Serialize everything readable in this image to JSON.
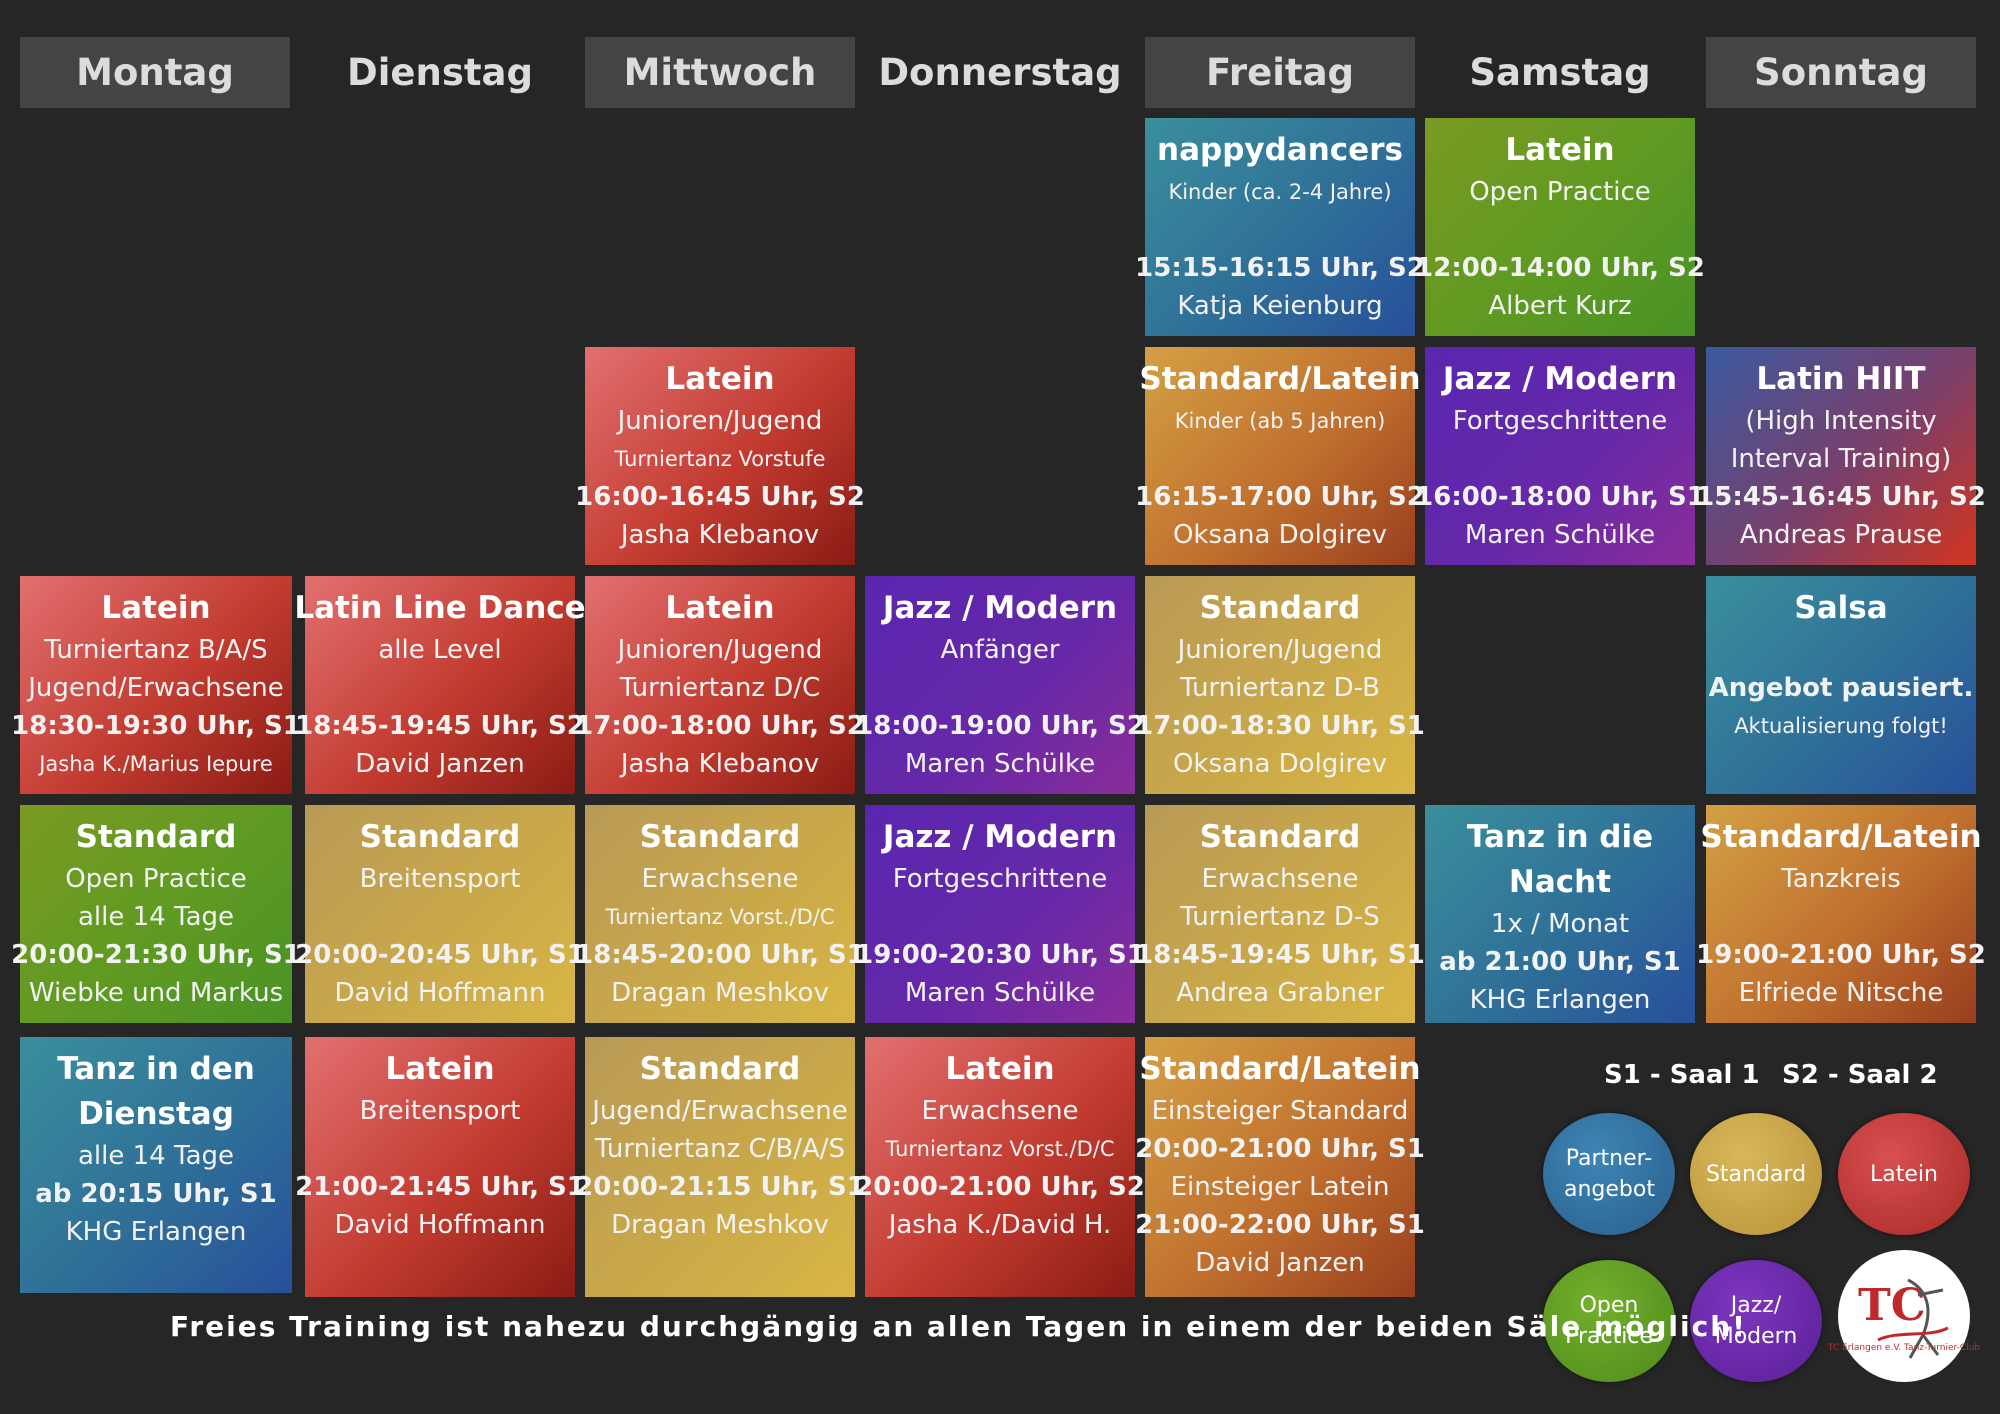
{
  "colors": {
    "background": "#262626",
    "header_shade": "#444444",
    "latein": "#c0392b",
    "standard": "#c9a646",
    "partner": "#2e6fa0",
    "open_practice": "#5e9a22",
    "jazz": "#6a2aa8",
    "standard_latein": "#c0702e"
  },
  "days": [
    "Montag",
    "Dienstag",
    "Mittwoch",
    "Donnerstag",
    "Freitag",
    "Samstag",
    "Sonntag"
  ],
  "cards": [
    {
      "day": "Freitag",
      "category": "partner",
      "lines": [
        "nappydancers",
        "Kinder (ca. 2-4 Jahre)",
        "",
        "15:15-16:15 Uhr, S2",
        "Katja Keienburg"
      ]
    },
    {
      "day": "Samstag",
      "category": "open_practice",
      "lines": [
        "Latein",
        "Open Practice",
        "",
        "12:00-14:00 Uhr, S2",
        "Albert Kurz"
      ]
    },
    {
      "day": "Mittwoch",
      "category": "latein",
      "lines": [
        "Latein",
        "Junioren/Jugend",
        "Turniertanz Vorstufe",
        "16:00-16:45 Uhr, S2",
        "Jasha Klebanov"
      ]
    },
    {
      "day": "Freitag",
      "category": "standard_latein",
      "lines": [
        "Standard/Latein",
        "Kinder (ab 5 Jahren)",
        "",
        "16:15-17:00 Uhr, S2",
        "Oksana Dolgirev"
      ]
    },
    {
      "day": "Samstag",
      "category": "jazz",
      "lines": [
        "Jazz / Modern",
        "Fortgeschrittene",
        "",
        "16:00-18:00 Uhr, S1",
        "Maren Schülke"
      ]
    },
    {
      "day": "Sonntag",
      "category": "latin_hiit",
      "lines": [
        "Latin HIIT",
        "(High Intensity",
        "Interval Training)",
        "15:45-16:45 Uhr, S2",
        "Andreas Prause"
      ]
    },
    {
      "day": "Montag",
      "category": "latein",
      "lines": [
        "Latein",
        "Turniertanz B/A/S",
        "Jugend/Erwachsene",
        "18:30-19:30 Uhr, S1",
        "Jasha K./Marius Iepure"
      ]
    },
    {
      "day": "Dienstag",
      "category": "latein",
      "lines": [
        "Latin Line Dance",
        "alle Level",
        "",
        "18:45-19:45 Uhr, S2",
        "David Janzen"
      ]
    },
    {
      "day": "Mittwoch",
      "category": "latein",
      "lines": [
        "Latein",
        "Junioren/Jugend",
        "Turniertanz D/C",
        "17:00-18:00 Uhr, S2",
        "Jasha Klebanov"
      ]
    },
    {
      "day": "Donnerstag",
      "category": "jazz",
      "lines": [
        "Jazz / Modern",
        "Anfänger",
        "",
        "18:00-19:00 Uhr, S2",
        "Maren Schülke"
      ]
    },
    {
      "day": "Freitag",
      "category": "standard",
      "lines": [
        "Standard",
        "Junioren/Jugend",
        "Turniertanz D-B",
        "17:00-18:30 Uhr, S1",
        "Oksana Dolgirev"
      ]
    },
    {
      "day": "Sonntag",
      "category": "partner",
      "lines": [
        "Salsa",
        "",
        "Angebot pausiert.",
        "Aktualisierung folgt!"
      ]
    },
    {
      "day": "Montag",
      "category": "open_practice",
      "lines": [
        "Standard",
        "Open Practice",
        "alle 14 Tage",
        "20:00-21:30 Uhr, S1",
        "Wiebke und Markus"
      ]
    },
    {
      "day": "Dienstag",
      "category": "standard",
      "lines": [
        "Standard",
        "Breitensport",
        "",
        "20:00-20:45 Uhr, S1",
        "David Hoffmann"
      ]
    },
    {
      "day": "Mittwoch",
      "category": "standard",
      "lines": [
        "Standard",
        "Erwachsene",
        "Turniertanz Vorst./D/C",
        "18:45-20:00 Uhr, S1",
        "Dragan Meshkov"
      ]
    },
    {
      "day": "Donnerstag",
      "category": "jazz",
      "lines": [
        "Jazz / Modern",
        "Fortgeschrittene",
        "",
        "19:00-20:30 Uhr, S1",
        "Maren Schülke"
      ]
    },
    {
      "day": "Freitag",
      "category": "standard",
      "lines": [
        "Standard",
        "Erwachsene",
        "Turniertanz D-S",
        "18:45-19:45 Uhr, S1",
        "Andrea Grabner"
      ]
    },
    {
      "day": "Samstag",
      "category": "partner",
      "lines": [
        "Tanz in die",
        "Nacht",
        "1x / Monat",
        "ab 21:00 Uhr, S1",
        "KHG Erlangen"
      ]
    },
    {
      "day": "Sonntag",
      "category": "standard_latein",
      "lines": [
        "Standard/Latein",
        "Tanzkreis",
        "",
        "19:00-21:00 Uhr, S2",
        "Elfriede Nitsche"
      ]
    },
    {
      "day": "Montag",
      "category": "partner",
      "lines": [
        "Tanz in den",
        "Dienstag",
        "alle 14 Tage",
        "ab 20:15 Uhr, S1",
        "KHG Erlangen"
      ]
    },
    {
      "day": "Dienstag",
      "category": "latein",
      "lines": [
        "Latein",
        "Breitensport",
        "",
        "21:00-21:45 Uhr, S1",
        "David Hoffmann"
      ]
    },
    {
      "day": "Mittwoch",
      "category": "standard",
      "lines": [
        "Standard",
        "Jugend/Erwachsene",
        "Turniertanz C/B/A/S",
        "20:00-21:15 Uhr, S1",
        "Dragan Meshkov"
      ]
    },
    {
      "day": "Donnerstag",
      "category": "latein",
      "lines": [
        "Latein",
        "Erwachsene",
        "Turniertanz Vorst./D/C",
        "20:00-21:00 Uhr, S2",
        "Jasha K./David H."
      ]
    },
    {
      "day": "Freitag",
      "category": "standard_latein",
      "lines": [
        "Standard/Latein",
        "Einsteiger Standard",
        "20:00-21:00 Uhr, S1",
        "Einsteiger Latein",
        "21:00-22:00 Uhr, S1",
        "David Janzen"
      ]
    }
  ],
  "legend": {
    "s1": "S1 - Saal 1",
    "s2": "S2 - Saal 2",
    "partner": "Partner- angebot",
    "standard": "Standard",
    "latein": "Latein",
    "open_practice": "Open Practice",
    "jazz": "Jazz/ Modern"
  },
  "footer": "Freies Training ist nahezu durchgängig an allen Tagen in einem der beiden Säle möglich!",
  "logo_text": "TC Erlangen e.V. Tanz-Turnier-Club"
}
